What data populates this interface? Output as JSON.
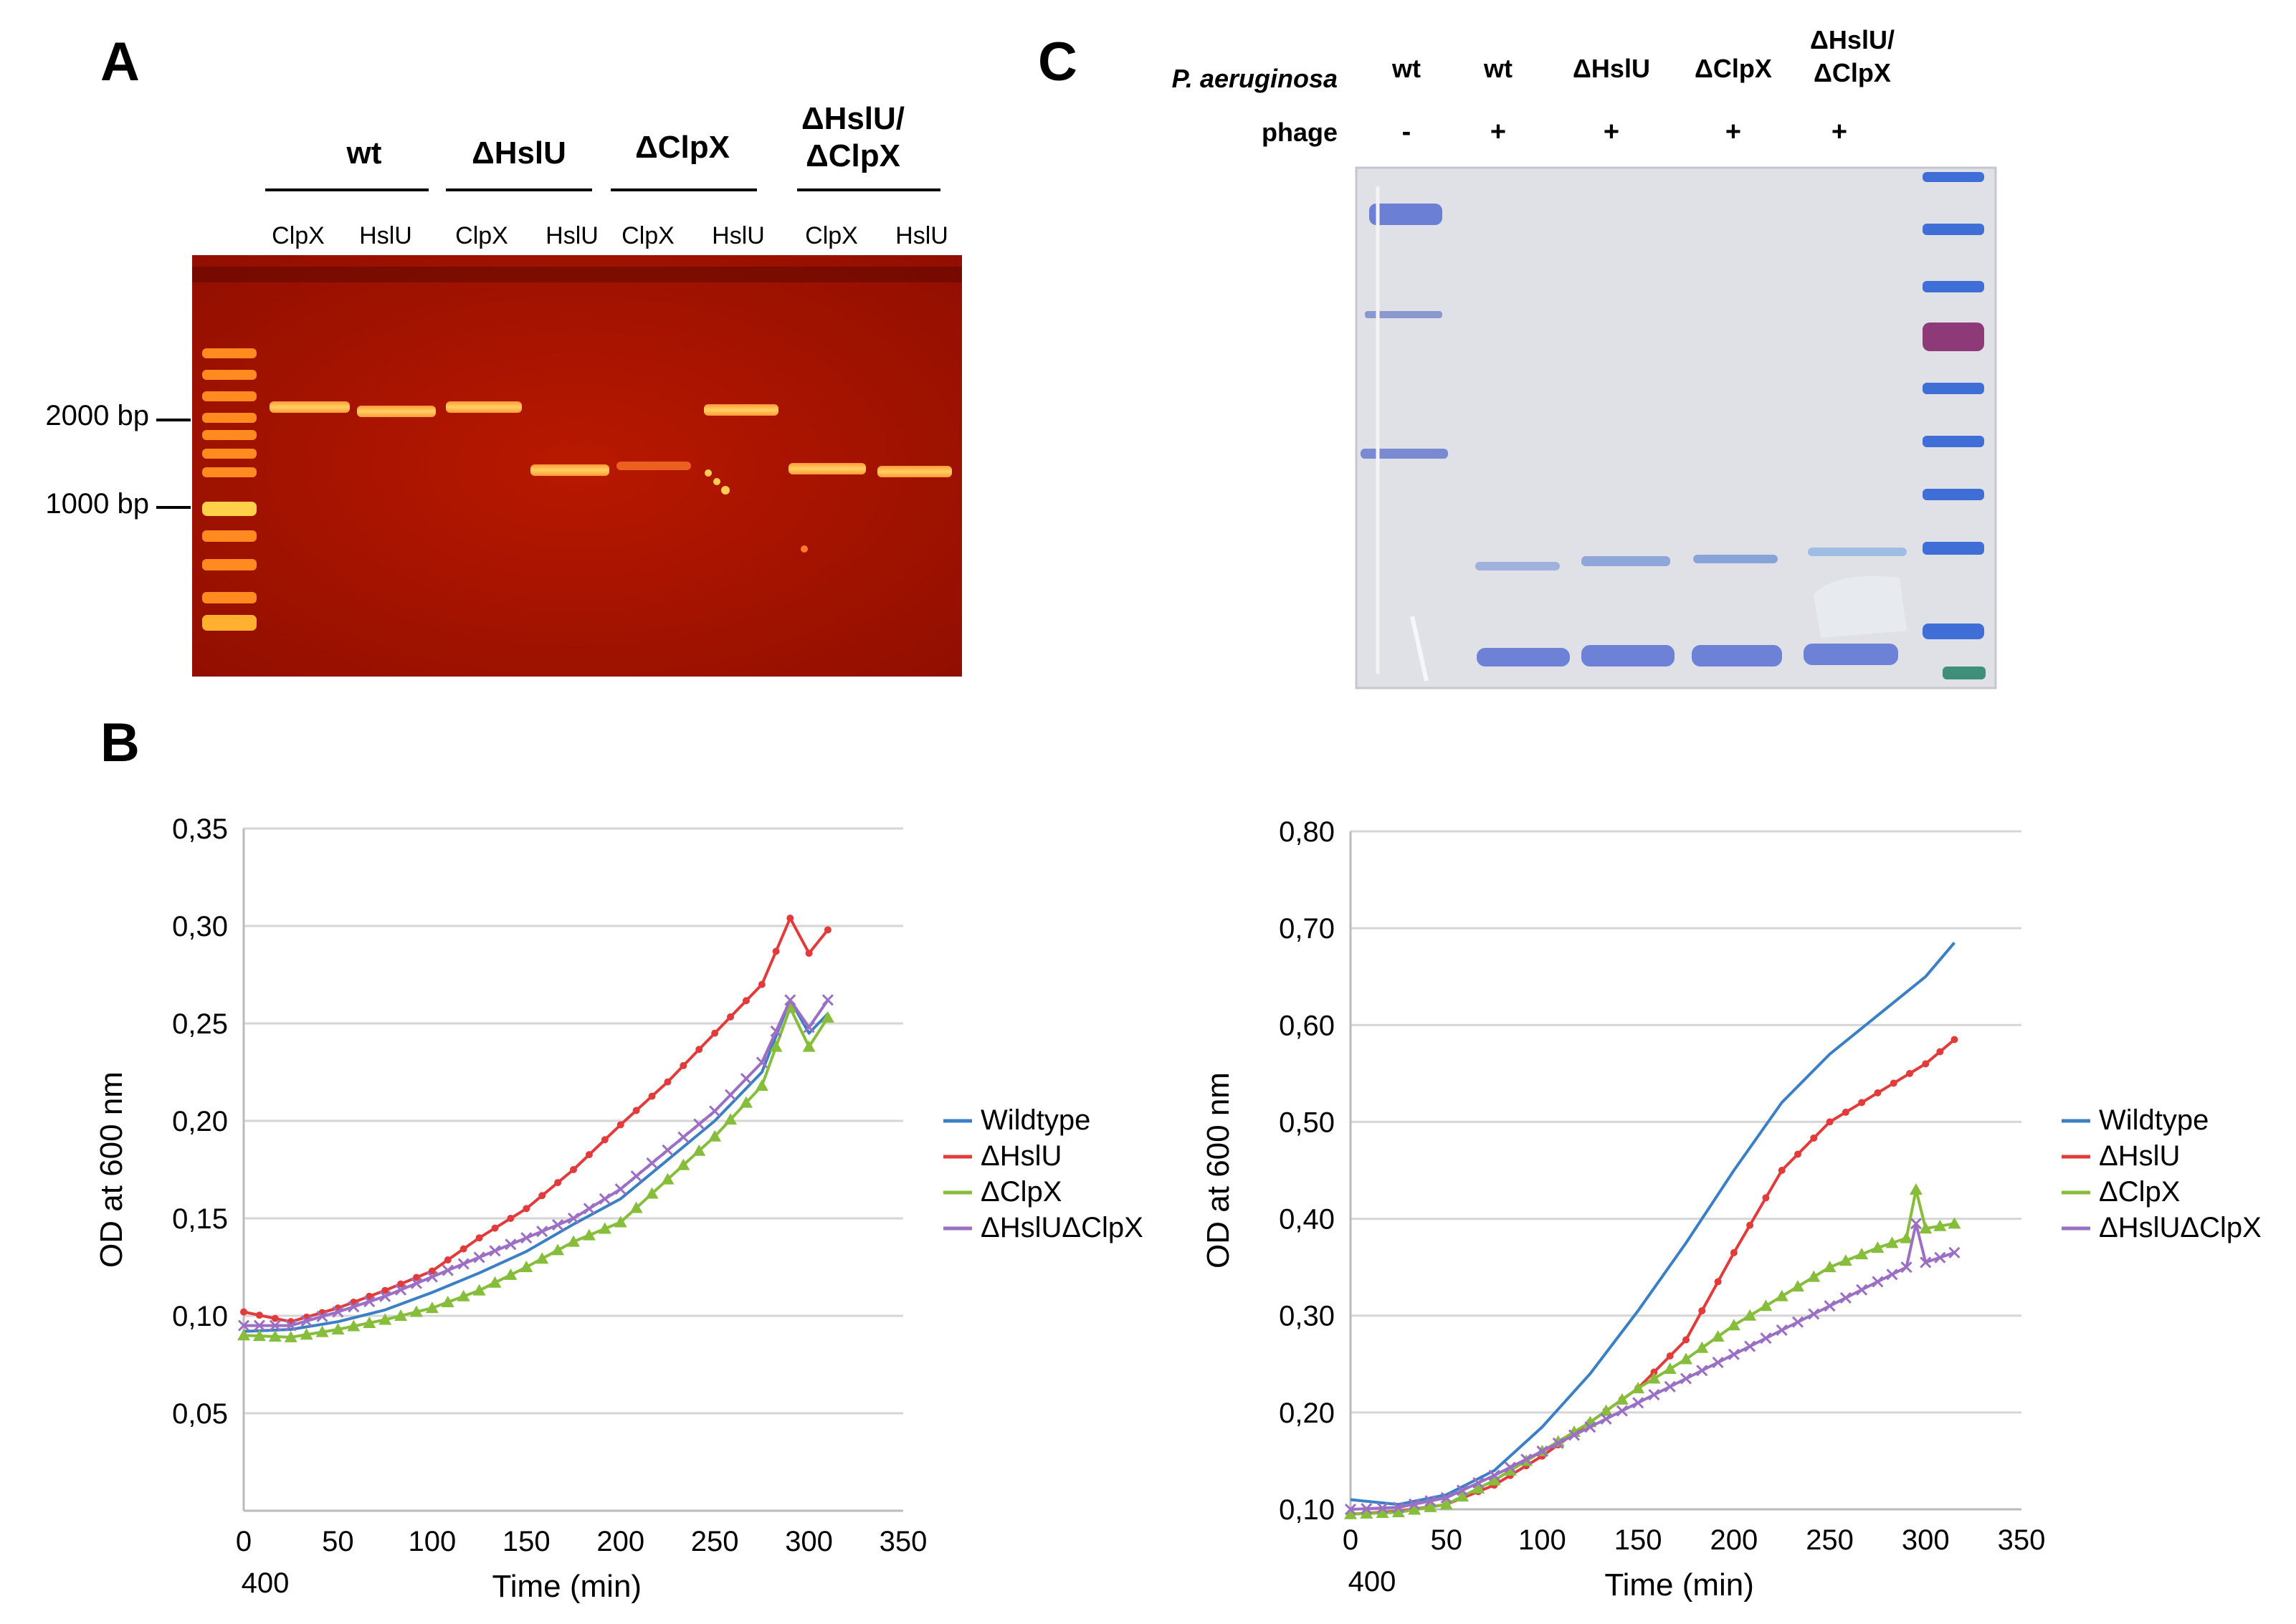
{
  "panel_a": {
    "label": "A",
    "groups": [
      "wt",
      "ΔHslU",
      "ΔClpX",
      "ΔHslU/\nΔClpX"
    ],
    "lanes": [
      "ClpX",
      "HslU",
      "ClpX",
      "HslU",
      "ClpX",
      "HslU",
      "ClpX",
      "HslU"
    ],
    "markers": [
      "2000 bp",
      "1000 bp"
    ]
  },
  "panel_b": {
    "label": "B"
  },
  "panel_c": {
    "label": "C",
    "strain_row_label": "P. aeruginosa",
    "phage_row_label": "phage",
    "strains": [
      "wt",
      "wt",
      "ΔHslU",
      "ΔClpX",
      "ΔHslU/\nΔClpX"
    ],
    "phage": [
      "-",
      "+",
      "+",
      "+",
      "+"
    ]
  },
  "colors": {
    "wildtype": "#3b7fc4",
    "hslu": "#e23b3b",
    "clpx": "#86bd3a",
    "double": "#9b6fc3"
  },
  "chart_data": [
    {
      "type": "line",
      "title": "",
      "xlabel": "Time (min)",
      "ylabel": "OD at 600 nm",
      "xlim": [
        0,
        350
      ],
      "ylim": [
        0.0,
        0.35
      ],
      "x_ticks": [
        "0",
        "50",
        "100",
        "150",
        "200",
        "250",
        "300",
        "350"
      ],
      "y_ticks": [
        "0,05",
        "0,10",
        "0,15",
        "0,20",
        "0,25",
        "0,30",
        "0,35"
      ],
      "extra_tick_label": "400",
      "legend": [
        "Wildtype",
        "ΔHslU",
        "ΔClpX",
        "ΔHslUΔClpX"
      ],
      "series": [
        {
          "name": "Wildtype",
          "color_key": "wildtype",
          "marker": "none",
          "x": [
            0,
            25,
            50,
            75,
            100,
            125,
            150,
            175,
            200,
            225,
            250,
            275,
            290,
            300,
            310
          ],
          "y": [
            0.092,
            0.093,
            0.097,
            0.103,
            0.112,
            0.122,
            0.133,
            0.147,
            0.16,
            0.18,
            0.2,
            0.225,
            0.262,
            0.245,
            0.255
          ]
        },
        {
          "name": "ΔHslU",
          "color_key": "hslu",
          "marker": "dot",
          "x": [
            0,
            25,
            50,
            75,
            100,
            125,
            150,
            175,
            200,
            225,
            250,
            275,
            290,
            300,
            310
          ],
          "y": [
            0.102,
            0.097,
            0.104,
            0.113,
            0.123,
            0.14,
            0.155,
            0.175,
            0.198,
            0.22,
            0.245,
            0.27,
            0.304,
            0.286,
            0.298
          ]
        },
        {
          "name": "ΔClpX",
          "color_key": "clpx",
          "marker": "triangle",
          "x": [
            0,
            25,
            50,
            75,
            100,
            125,
            150,
            175,
            200,
            225,
            250,
            275,
            290,
            300,
            310
          ],
          "y": [
            0.09,
            0.089,
            0.093,
            0.098,
            0.104,
            0.113,
            0.125,
            0.138,
            0.148,
            0.17,
            0.192,
            0.218,
            0.258,
            0.238,
            0.253
          ]
        },
        {
          "name": "ΔHslUΔClpX",
          "color_key": "double",
          "marker": "cross",
          "x": [
            0,
            25,
            50,
            75,
            100,
            125,
            150,
            175,
            200,
            225,
            250,
            275,
            290,
            300,
            310
          ],
          "y": [
            0.095,
            0.095,
            0.102,
            0.11,
            0.12,
            0.13,
            0.14,
            0.15,
            0.165,
            0.185,
            0.205,
            0.23,
            0.262,
            0.248,
            0.262
          ]
        }
      ]
    },
    {
      "type": "line",
      "title": "",
      "xlabel": "Time (min)",
      "ylabel": "OD at 600 nm",
      "xlim": [
        0,
        350
      ],
      "ylim": [
        0.1,
        0.8
      ],
      "x_ticks": [
        "0",
        "50",
        "100",
        "150",
        "200",
        "250",
        "300",
        "350"
      ],
      "y_ticks": [
        "0,10",
        "0,20",
        "0,30",
        "0,40",
        "0,50",
        "0,60",
        "0,70",
        "0,80"
      ],
      "extra_tick_label": "400",
      "legend": [
        "Wildtype",
        "ΔHslU",
        "ΔClpX",
        "ΔHslUΔClpX"
      ],
      "series": [
        {
          "name": "Wildtype",
          "color_key": "wildtype",
          "marker": "none",
          "x": [
            0,
            25,
            50,
            75,
            100,
            125,
            150,
            175,
            200,
            225,
            250,
            275,
            300,
            315
          ],
          "y": [
            0.11,
            0.105,
            0.115,
            0.14,
            0.185,
            0.24,
            0.305,
            0.375,
            0.45,
            0.52,
            0.57,
            0.61,
            0.65,
            0.685
          ]
        },
        {
          "name": "ΔHslU",
          "color_key": "hslu",
          "marker": "dot",
          "x": [
            0,
            25,
            50,
            75,
            100,
            125,
            150,
            175,
            200,
            225,
            250,
            275,
            300,
            315
          ],
          "y": [
            0.095,
            0.098,
            0.105,
            0.125,
            0.155,
            0.19,
            0.225,
            0.275,
            0.365,
            0.45,
            0.5,
            0.53,
            0.56,
            0.585
          ]
        },
        {
          "name": "ΔClpX",
          "color_key": "clpx",
          "marker": "triangle",
          "x": [
            0,
            25,
            50,
            75,
            100,
            125,
            150,
            175,
            200,
            225,
            250,
            275,
            290,
            295,
            300,
            315
          ],
          "y": [
            0.095,
            0.097,
            0.105,
            0.13,
            0.16,
            0.19,
            0.225,
            0.255,
            0.29,
            0.32,
            0.35,
            0.37,
            0.38,
            0.43,
            0.39,
            0.395
          ]
        },
        {
          "name": "ΔHslUΔClpX",
          "color_key": "double",
          "marker": "cross",
          "x": [
            0,
            25,
            50,
            75,
            100,
            125,
            150,
            175,
            200,
            225,
            250,
            275,
            290,
            295,
            300,
            315
          ],
          "y": [
            0.1,
            0.102,
            0.112,
            0.135,
            0.16,
            0.185,
            0.21,
            0.235,
            0.26,
            0.285,
            0.31,
            0.335,
            0.35,
            0.395,
            0.355,
            0.365
          ]
        }
      ]
    }
  ]
}
